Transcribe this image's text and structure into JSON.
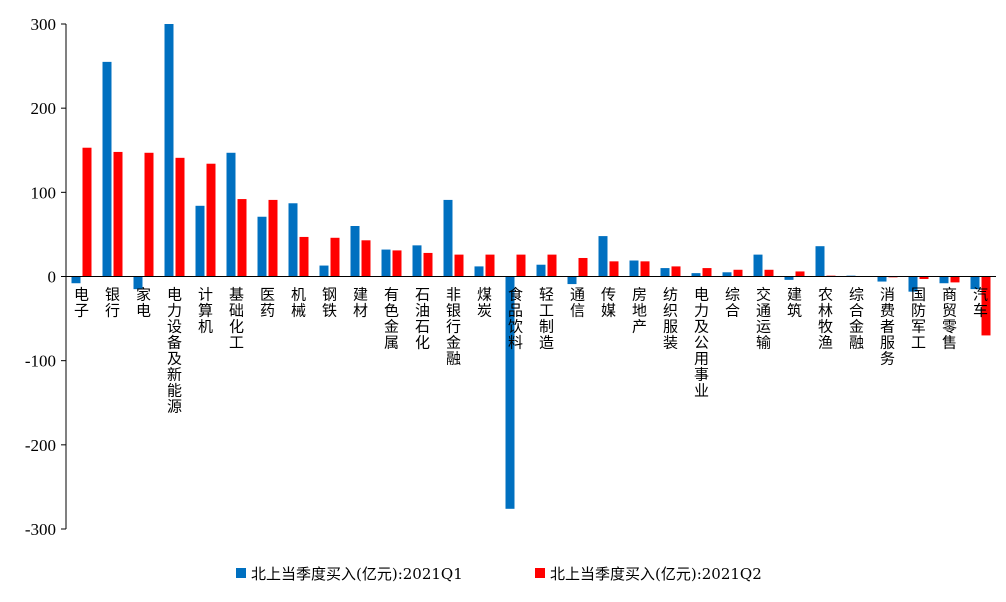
{
  "chart_data": {
    "type": "bar",
    "categories": [
      "电子",
      "银行",
      "家电",
      "电力设备及新能源",
      "计算机",
      "基础化工",
      "医药",
      "机械",
      "钢铁",
      "建材",
      "有色金属",
      "石油石化",
      "非银行金融",
      "煤炭",
      "食品饮料",
      "轻工制造",
      "通信",
      "传媒",
      "房地产",
      "纺织服装",
      "电力及公用事业",
      "综合",
      "交通运输",
      "建筑",
      "农林牧渔",
      "综合金融",
      "消费者服务",
      "国防军工",
      "商贸零售",
      "汽车"
    ],
    "series": [
      {
        "name": "北上当季度买入(亿元):2021Q1",
        "color": "#0070c0",
        "values": [
          -8,
          255,
          -15,
          300,
          84,
          147,
          71,
          87,
          13,
          60,
          32,
          37,
          91,
          12,
          -276,
          14,
          -9,
          48,
          19,
          10,
          4,
          5,
          26,
          -4,
          36,
          1,
          -6,
          -18,
          -8,
          -15
        ]
      },
      {
        "name": "北上当季度买入(亿元):2021Q2",
        "color": "#ff0000",
        "values": [
          153,
          148,
          147,
          141,
          134,
          92,
          91,
          47,
          46,
          43,
          31,
          28,
          26,
          26,
          26,
          26,
          22,
          18,
          18,
          12,
          10,
          8,
          8,
          6,
          1,
          0,
          -1,
          -3,
          -7,
          -70
        ]
      }
    ],
    "ylim": [
      -300,
      300
    ],
    "yticks": [
      -300,
      -200,
      -100,
      0,
      100,
      200,
      300
    ],
    "ytick_labels": [
      "-300",
      "-200",
      "-100",
      "0",
      "100",
      "200",
      "300"
    ],
    "grid": false,
    "legend_position": "bottom"
  }
}
